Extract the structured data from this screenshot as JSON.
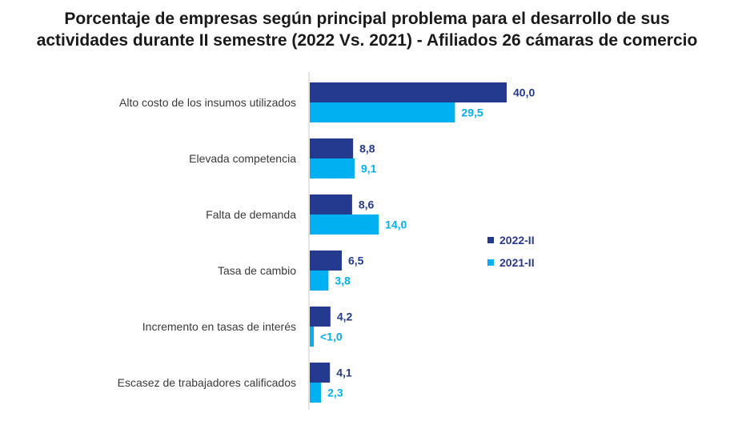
{
  "chart_data": {
    "type": "bar",
    "orientation": "horizontal",
    "title_lines": [
      "Porcentaje de empresas según principal problema para el desarrollo de sus",
      "actividades durante II semestre (2022 Vs. 2021) -   Afiliados 26 cámaras de comercio"
    ],
    "categories": [
      "Alto costo de los insumos utilizados",
      "Elevada competencia",
      "Falta de demanda",
      "Tasa de cambio",
      "Incremento en tasas de interés",
      "Escasez de trabajadores calificados"
    ],
    "series": [
      {
        "name": "2022-II",
        "color": "#233a8f",
        "values": [
          40.0,
          8.8,
          8.6,
          6.5,
          4.2,
          4.1
        ],
        "labels": [
          "40,0",
          "8,8",
          "8,6",
          "6,5",
          "4,2",
          "4,1"
        ]
      },
      {
        "name": "2021-II",
        "color": "#00b0f0",
        "values": [
          29.5,
          9.1,
          14.0,
          3.8,
          0.8,
          2.3
        ],
        "labels": [
          "29,5",
          "9,1",
          "14,0",
          "3,8",
          "<1,0",
          "2,3"
        ]
      }
    ],
    "xlim": [
      0,
      40
    ],
    "legend_position": "right"
  }
}
